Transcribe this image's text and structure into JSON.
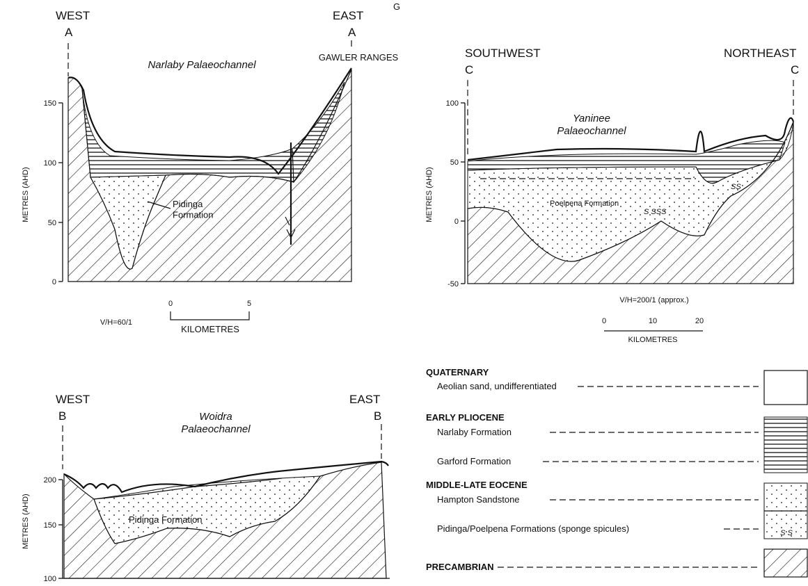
{
  "header": {
    "mark": "G"
  },
  "panels": [
    {
      "title": "Narlaby Palaeochannel",
      "left_label": "WEST",
      "left_marker": "A",
      "right_label": "EAST",
      "right_marker": "A",
      "feature": "GAWLER RANGES",
      "y_axis_label": "METRES (AHD)",
      "yticks": [
        "150",
        "100",
        "50",
        "0"
      ],
      "formation_label": "Pidinga Formation",
      "ratio": "V/H=60/1",
      "scale_ticks": [
        "0",
        "5"
      ],
      "scale_unit": "KILOMETRES"
    },
    {
      "title": "Yaninee Palaeochannel",
      "left_label": "SOUTHWEST",
      "left_marker": "C",
      "right_label": "NORTHEAST",
      "right_marker": "C",
      "y_axis_label": "METRES (AHD)",
      "yticks": [
        "100",
        "50",
        "0",
        "-50"
      ],
      "formation_label": "Poelpena Formation",
      "spicules": [
        "S SSS",
        "SS"
      ],
      "ratio": "V/H=200/1 (approx.)",
      "scale_ticks": [
        "0",
        "10",
        "20"
      ],
      "scale_unit": "KILOMETRES"
    },
    {
      "title": "Woidra Palaeochannel",
      "left_label": "WEST",
      "left_marker": "B",
      "right_label": "EAST",
      "right_marker": "B",
      "y_axis_label": "METRES (AHD)",
      "yticks": [
        "200",
        "150",
        "100"
      ],
      "formation_label": "Pidinga Formation"
    }
  ],
  "legend": {
    "groups": [
      {
        "age": "QUATERNARY",
        "items": [
          "Aeolian sand, undifferentiated"
        ]
      },
      {
        "age": "EARLY PLIOCENE",
        "items": [
          "Narlaby Formation",
          "Garford Formation"
        ]
      },
      {
        "age": "MIDDLE-LATE EOCENE",
        "items": [
          "Hampton Sandstone",
          "Pidinga/Poelpena Formations (sponge spicules)"
        ]
      },
      {
        "age": "PRECAMBRIAN",
        "items": []
      }
    ],
    "spicule_swatch": "S S"
  }
}
